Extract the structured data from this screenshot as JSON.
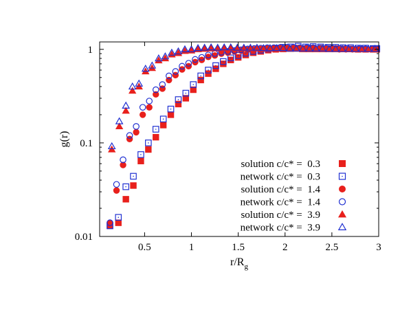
{
  "chart_data": {
    "type": "scatter",
    "title": "",
    "xlabel": "r/R",
    "xlabel_subscript": "g",
    "ylabel": "g(r)",
    "xlim": [
      0.02,
      3.0
    ],
    "ylim": [
      0.01,
      1.2
    ],
    "y_scale": "log",
    "grid": false,
    "legend_position": "bottom-right",
    "x_ticks": [
      {
        "value": 0.5,
        "label": "0.5"
      },
      {
        "value": 1.0,
        "label": "1"
      },
      {
        "value": 1.5,
        "label": "1.5"
      },
      {
        "value": 2.0,
        "label": "2"
      },
      {
        "value": 2.5,
        "label": "2.5"
      },
      {
        "value": 3.0,
        "label": "3"
      }
    ],
    "y_ticks": [
      {
        "value": 0.01,
        "label": "0.01"
      },
      {
        "value": 0.1,
        "label": "0.1"
      },
      {
        "value": 1,
        "label": "1"
      }
    ],
    "series": [
      {
        "name": "solution c/c* =  0.3",
        "marker": "square-filled",
        "color": "#e8201c",
        "x": [
          0.13,
          0.22,
          0.3,
          0.38,
          0.46,
          0.54,
          0.62,
          0.7,
          0.78,
          0.86,
          0.94,
          1.02,
          1.1,
          1.18,
          1.26,
          1.34,
          1.42,
          1.5,
          1.58,
          1.66,
          1.74,
          1.82,
          1.9,
          1.98,
          2.06,
          2.14,
          2.22,
          2.3,
          2.38,
          2.46,
          2.54,
          2.62,
          2.7,
          2.78,
          2.86,
          2.94,
          2.98
        ],
        "y": [
          0.013,
          0.014,
          0.025,
          0.035,
          0.064,
          0.085,
          0.115,
          0.155,
          0.2,
          0.26,
          0.3,
          0.37,
          0.47,
          0.55,
          0.62,
          0.7,
          0.77,
          0.82,
          0.87,
          0.92,
          0.95,
          0.98,
          1.0,
          1.01,
          1.02,
          1.03,
          1.02,
          1.03,
          1.03,
          1.02,
          1.02,
          1.01,
          1.01,
          1.0,
          1.0,
          1.0,
          1.0
        ]
      },
      {
        "name": "network c/c* =  0.3",
        "marker": "square-open",
        "color": "#1f2fd1",
        "x": [
          0.13,
          0.22,
          0.3,
          0.38,
          0.46,
          0.54,
          0.62,
          0.7,
          0.78,
          0.86,
          0.94,
          1.02,
          1.1,
          1.18,
          1.26,
          1.34,
          1.42,
          1.5,
          1.58,
          1.66,
          1.74,
          1.82,
          1.9,
          1.98,
          2.06,
          2.14,
          2.22,
          2.3,
          2.38,
          2.46,
          2.54,
          2.62,
          2.7,
          2.78,
          2.86,
          2.94,
          2.98
        ],
        "y": [
          0.013,
          0.016,
          0.034,
          0.044,
          0.075,
          0.1,
          0.14,
          0.18,
          0.23,
          0.29,
          0.34,
          0.42,
          0.52,
          0.6,
          0.67,
          0.74,
          0.81,
          0.86,
          0.91,
          0.95,
          0.98,
          1.01,
          1.03,
          1.05,
          1.06,
          1.08,
          1.06,
          1.07,
          1.06,
          1.05,
          1.05,
          1.04,
          1.04,
          1.03,
          1.03,
          1.02,
          1.02
        ]
      },
      {
        "name": "solution c/c* =  1.4",
        "marker": "circle-filled",
        "color": "#e8201c",
        "x": [
          0.13,
          0.2,
          0.27,
          0.34,
          0.41,
          0.48,
          0.55,
          0.62,
          0.69,
          0.76,
          0.83,
          0.9,
          0.97,
          1.04,
          1.11,
          1.18,
          1.25,
          1.32,
          1.39,
          1.46,
          1.53,
          1.6,
          1.67,
          1.74,
          1.81,
          1.88,
          1.95,
          2.02,
          2.09,
          2.16,
          2.23,
          2.3,
          2.37,
          2.44,
          2.51,
          2.58,
          2.65,
          2.72,
          2.79,
          2.86,
          2.93,
          2.98
        ],
        "y": [
          0.014,
          0.031,
          0.058,
          0.11,
          0.13,
          0.2,
          0.24,
          0.33,
          0.38,
          0.47,
          0.53,
          0.61,
          0.66,
          0.73,
          0.77,
          0.83,
          0.86,
          0.9,
          0.92,
          0.95,
          0.97,
          0.99,
          1.0,
          1.01,
          1.02,
          1.02,
          1.03,
          1.03,
          1.03,
          1.02,
          1.02,
          1.02,
          1.01,
          1.01,
          1.01,
          1.0,
          1.0,
          1.0,
          1.0,
          1.0,
          1.0,
          1.0
        ]
      },
      {
        "name": "network c/c* =  1.4",
        "marker": "circle-open",
        "color": "#1f2fd1",
        "x": [
          0.13,
          0.2,
          0.27,
          0.34,
          0.41,
          0.48,
          0.55,
          0.62,
          0.69,
          0.76,
          0.83,
          0.9,
          0.97,
          1.04,
          1.11,
          1.18,
          1.25,
          1.32,
          1.39,
          1.46,
          1.53,
          1.6,
          1.67,
          1.74,
          1.81,
          1.88,
          1.95,
          2.02,
          2.09,
          2.16,
          2.23,
          2.3,
          2.37,
          2.44,
          2.51,
          2.58,
          2.65,
          2.72,
          2.79,
          2.86,
          2.93,
          2.98
        ],
        "y": [
          0.014,
          0.036,
          0.066,
          0.12,
          0.15,
          0.24,
          0.28,
          0.37,
          0.42,
          0.52,
          0.58,
          0.66,
          0.71,
          0.78,
          0.82,
          0.87,
          0.9,
          0.93,
          0.95,
          0.97,
          0.99,
          1.01,
          1.02,
          1.03,
          1.04,
          1.04,
          1.05,
          1.05,
          1.05,
          1.04,
          1.04,
          1.04,
          1.03,
          1.03,
          1.02,
          1.02,
          1.02,
          1.01,
          1.01,
          1.01,
          1.01,
          1.01
        ]
      },
      {
        "name": "solution c/c* =  3.9",
        "marker": "triangle-filled",
        "color": "#e8201c",
        "x": [
          0.15,
          0.23,
          0.3,
          0.37,
          0.44,
          0.51,
          0.58,
          0.65,
          0.72,
          0.79,
          0.86,
          0.93,
          1.0,
          1.07,
          1.14,
          1.21,
          1.28,
          1.35,
          1.42,
          1.49,
          1.56,
          1.63,
          1.7,
          1.77,
          1.84,
          1.91,
          1.98,
          2.05,
          2.12,
          2.19,
          2.26,
          2.33,
          2.4,
          2.47,
          2.54,
          2.61,
          2.68,
          2.75,
          2.82,
          2.89,
          2.96
        ],
        "y": [
          0.085,
          0.15,
          0.22,
          0.36,
          0.4,
          0.58,
          0.63,
          0.76,
          0.8,
          0.88,
          0.91,
          0.96,
          0.97,
          1.0,
          1.01,
          1.02,
          1.02,
          1.02,
          1.03,
          1.02,
          1.02,
          1.02,
          1.02,
          1.01,
          1.01,
          1.01,
          1.01,
          1.01,
          1.01,
          1.0,
          1.0,
          1.0,
          1.0,
          1.0,
          1.0,
          1.0,
          1.0,
          1.0,
          1.0,
          1.0,
          1.0
        ]
      },
      {
        "name": "network c/c* =  3.9",
        "marker": "triangle-open",
        "color": "#1f2fd1",
        "x": [
          0.15,
          0.23,
          0.3,
          0.37,
          0.44,
          0.51,
          0.58,
          0.65,
          0.72,
          0.79,
          0.86,
          0.93,
          1.0,
          1.07,
          1.14,
          1.21,
          1.28,
          1.35,
          1.42,
          1.49,
          1.56,
          1.63,
          1.7,
          1.77,
          1.84,
          1.91,
          1.98,
          2.05,
          2.12,
          2.19,
          2.26,
          2.33,
          2.4,
          2.47,
          2.54,
          2.61,
          2.68,
          2.75,
          2.82,
          2.89,
          2.96
        ],
        "y": [
          0.092,
          0.17,
          0.25,
          0.4,
          0.43,
          0.62,
          0.67,
          0.8,
          0.84,
          0.92,
          0.95,
          1.0,
          1.0,
          1.03,
          1.04,
          1.05,
          1.04,
          1.05,
          1.05,
          1.04,
          1.04,
          1.04,
          1.04,
          1.03,
          1.03,
          1.03,
          1.03,
          1.02,
          1.02,
          1.02,
          1.02,
          1.02,
          1.02,
          1.01,
          1.01,
          1.01,
          1.01,
          1.01,
          1.01,
          1.01,
          1.01
        ]
      }
    ]
  }
}
